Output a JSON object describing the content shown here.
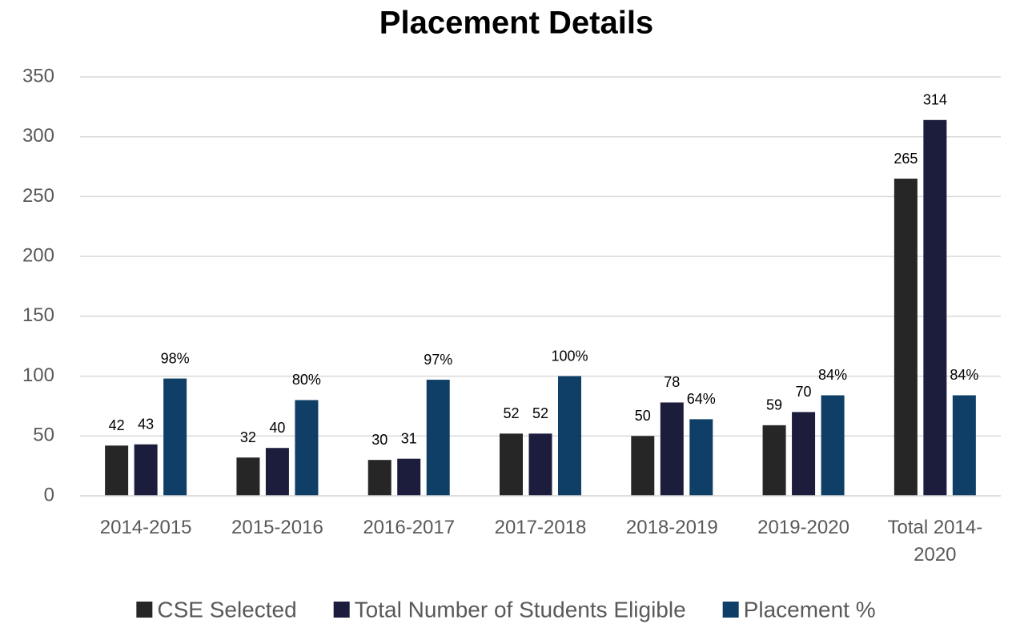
{
  "chart_data": {
    "type": "bar",
    "title": "Placement Details",
    "categories": [
      "2014-2015",
      "2015-2016",
      "2016-2017",
      "2017-2018",
      "2018-2019",
      "2019-2020",
      "Total 2014-2020"
    ],
    "series": [
      {
        "name": "CSE Selected",
        "color": "#262626",
        "values": [
          42,
          32,
          30,
          52,
          50,
          59,
          265
        ]
      },
      {
        "name": "Total Number of Students Eligible",
        "color": "#1c1c3c",
        "values": [
          43,
          40,
          31,
          52,
          78,
          70,
          314
        ]
      },
      {
        "name": "Placement %",
        "color": "#0f3f66",
        "values": [
          98,
          80,
          97,
          100,
          64,
          84,
          84
        ],
        "value_labels": [
          "98%",
          "80%",
          "97%",
          "100%",
          "64%",
          "84%",
          "84%"
        ]
      }
    ],
    "ylim": [
      0,
      350
    ],
    "yticks": [
      0,
      50,
      100,
      150,
      200,
      250,
      300,
      350
    ],
    "grid": true,
    "legend": "bottom"
  }
}
